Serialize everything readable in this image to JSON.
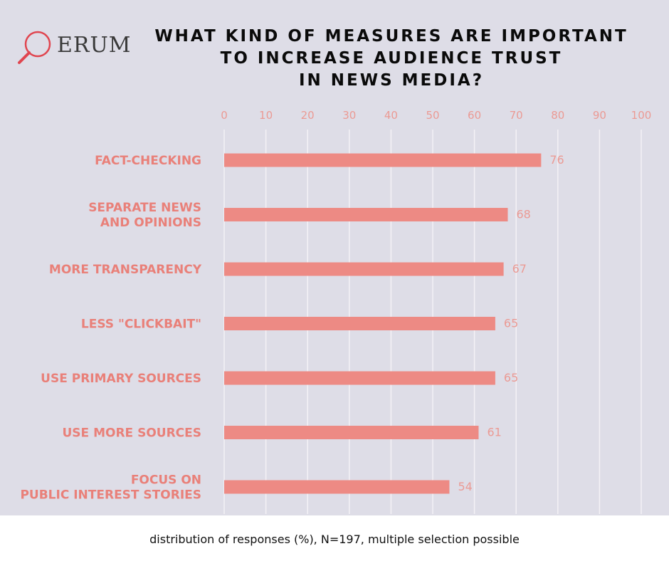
{
  "logo": {
    "text": "ERUM"
  },
  "caption": "distribution of responses (%), N=197, multiple selection possible",
  "colors": {
    "bar": "#ed8a84",
    "label": "#e98079",
    "tick": "#eb9a94",
    "grid": "#f4f2f6",
    "background": "#dedde7"
  },
  "chart_data": {
    "type": "bar",
    "orientation": "horizontal",
    "title_lines": [
      "WHAT KIND OF MEASURES ARE IMPORTANT",
      "TO INCREASE AUDIENCE TRUST",
      "IN NEWS MEDIA?"
    ],
    "xlim": [
      0,
      100
    ],
    "ticks": [
      0,
      10,
      20,
      30,
      40,
      50,
      60,
      70,
      80,
      90,
      100
    ],
    "tick_position": "top",
    "grid": true,
    "categories": [
      [
        "FACT-CHECKING"
      ],
      [
        "SEPARATE NEWS",
        "AND OPINIONS"
      ],
      [
        "MORE TRANSPARENCY"
      ],
      [
        "LESS \"CLICKBAIT\""
      ],
      [
        "USE PRIMARY SOURCES"
      ],
      [
        "USE MORE SOURCES"
      ],
      [
        "FOCUS ON",
        "PUBLIC INTEREST STORIES"
      ]
    ],
    "values": [
      76,
      68,
      67,
      65,
      65,
      61,
      54
    ]
  }
}
